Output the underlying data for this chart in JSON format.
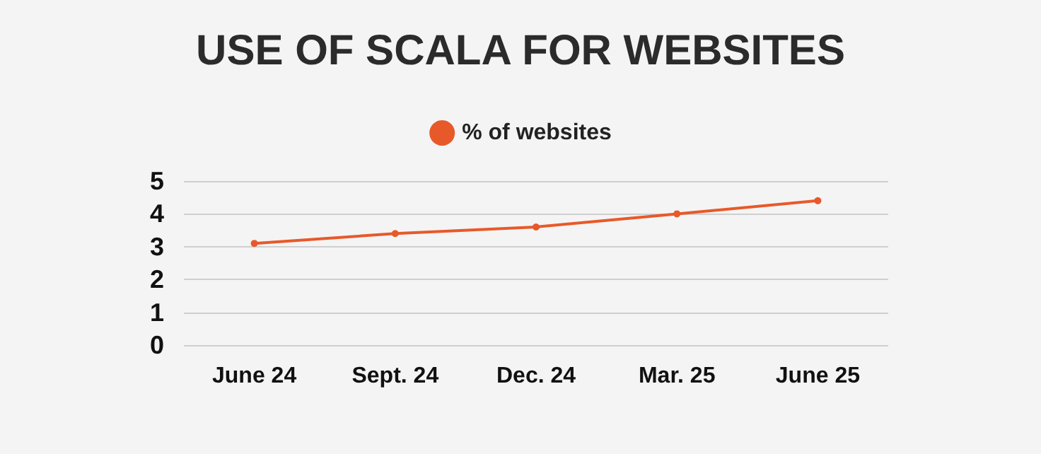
{
  "chart_data": {
    "type": "line",
    "title": "USE OF SCALA FOR WEBSITES",
    "categories": [
      "June 24",
      "Sept. 24",
      "Dec. 24",
      "Mar. 25",
      "June 25"
    ],
    "series": [
      {
        "name": "% of websites",
        "color": "#e8592a",
        "values": [
          3.1,
          3.4,
          3.6,
          4.0,
          4.4
        ]
      }
    ],
    "ylim": [
      0,
      5
    ],
    "yticks": [
      0,
      1,
      2,
      3,
      4,
      5
    ],
    "grid": "y",
    "legend": "top",
    "marker": "circle",
    "line_style": "solid"
  }
}
